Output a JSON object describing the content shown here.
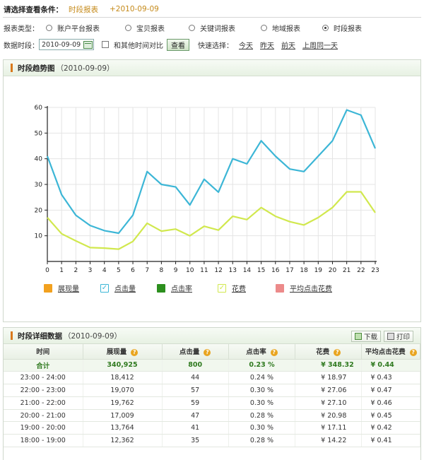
{
  "header": {
    "title": "请选择查看条件：",
    "selected": "时段报表",
    "date": "+2010-09-09"
  },
  "report_type": {
    "label": "报表类型：",
    "options": [
      "账户平台报表",
      "宝贝报表",
      "关键词报表",
      "地域报表",
      "时段报表"
    ],
    "selected_index": 4
  },
  "date_row": {
    "label": "数据时段：",
    "date_value": "2010-09-09",
    "compare_label": "和其他时间对比",
    "query_button": "查看",
    "quick_label": "快速选择：",
    "quick_links": [
      "今天",
      "昨天",
      "前天",
      "上周同一天"
    ]
  },
  "trend_panel": {
    "title": "时段趋势图",
    "subtitle": "（2010-09-09）"
  },
  "chart_data": {
    "type": "line",
    "x": [
      0,
      1,
      2,
      3,
      4,
      5,
      6,
      7,
      8,
      9,
      10,
      11,
      12,
      13,
      14,
      15,
      16,
      17,
      18,
      19,
      20,
      21,
      22,
      23
    ],
    "ylim": [
      0,
      60
    ],
    "yticks": [
      10,
      20,
      30,
      40,
      50,
      60
    ],
    "grid": true,
    "series": [
      {
        "name": "点击量",
        "color": "#3cb6d6",
        "values": [
          41,
          26,
          18,
          14,
          12,
          11,
          18,
          35,
          30,
          29,
          22,
          32,
          27,
          40,
          38,
          47,
          41,
          36,
          35,
          41,
          47,
          59,
          57,
          44
        ]
      },
      {
        "name": "花费",
        "color": "#d1e84e",
        "values": [
          17.1,
          10.8,
          8,
          5.4,
          5.2,
          4.8,
          7.8,
          14.9,
          11.8,
          12.6,
          10,
          13.7,
          12.2,
          17.6,
          16.3,
          21,
          17.6,
          15.5,
          14.2,
          17.1,
          21,
          27.1,
          27.1,
          19
        ]
      }
    ],
    "legend": [
      {
        "name": "展现量",
        "color": "#f2a11f",
        "checked": false
      },
      {
        "name": "点击量",
        "color": "#3cb6d6",
        "checked": true
      },
      {
        "name": "点击率",
        "color": "#2c8f1e",
        "checked": false
      },
      {
        "name": "花费",
        "color": "#d1e84e",
        "checked": true
      },
      {
        "name": "平均点击花费",
        "color": "#ec8a8a",
        "checked": false
      }
    ],
    "legend_placement": "bottom"
  },
  "detail_panel": {
    "title": "时段详细数据",
    "subtitle": "（2010-09-09）",
    "download_label": "下载",
    "print_label": "打印"
  },
  "table": {
    "columns": [
      "时间",
      "展现量",
      "点击量",
      "点击率",
      "花费",
      "平均点击花费"
    ],
    "help_icon": "?",
    "total": [
      "合计",
      "340,925",
      "800",
      "0.23 %",
      "¥ 348.32",
      "¥ 0.44"
    ],
    "rows": [
      [
        "23:00 - 24:00",
        "18,412",
        "44",
        "0.24 %",
        "¥ 18.97",
        "¥ 0.43"
      ],
      [
        "22:00 - 23:00",
        "19,070",
        "57",
        "0.30 %",
        "¥ 27.06",
        "¥ 0.47"
      ],
      [
        "21:00 - 22:00",
        "19,762",
        "59",
        "0.30 %",
        "¥ 27.10",
        "¥ 0.46"
      ],
      [
        "20:00 - 21:00",
        "17,009",
        "47",
        "0.28 %",
        "¥ 20.98",
        "¥ 0.45"
      ],
      [
        "19:00 - 20:00",
        "13,764",
        "41",
        "0.30 %",
        "¥ 17.11",
        "¥ 0.42"
      ],
      [
        "18:00 - 19:00",
        "12,362",
        "35",
        "0.28 %",
        "¥ 14.22",
        "¥ 0.41"
      ]
    ]
  }
}
